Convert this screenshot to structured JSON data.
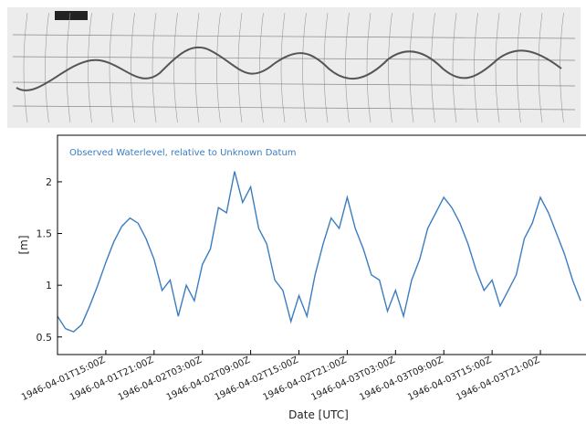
{
  "chart_data": {
    "type": "line",
    "annotation": "Observed Waterlevel, relative to Unknown Datum",
    "ylabel": "[m]",
    "xlabel": "Date [UTC]",
    "ylim": [
      0.33,
      2.45
    ],
    "yticks": [
      0.5,
      1.0,
      1.5,
      2.0
    ],
    "xlim": [
      "1946-04-01T09:00Z",
      "1946-04-04T02:40Z"
    ],
    "xticks": [
      "1946-04-01T15:00Z",
      "1946-04-01T21:00Z",
      "1946-04-02T03:00Z",
      "1946-04-02T09:00Z",
      "1946-04-02T15:00Z",
      "1946-04-02T21:00Z",
      "1946-04-03T03:00Z",
      "1946-04-03T09:00Z",
      "1946-04-03T15:00Z",
      "1946-04-03T21:00Z"
    ],
    "series": [
      {
        "color": "#3b7dc0",
        "x": [
          "1946-04-01T09:00Z",
          "1946-04-01T10:00Z",
          "1946-04-01T11:00Z",
          "1946-04-01T12:00Z",
          "1946-04-01T13:00Z",
          "1946-04-01T14:00Z",
          "1946-04-01T15:00Z",
          "1946-04-01T16:00Z",
          "1946-04-01T17:00Z",
          "1946-04-01T18:00Z",
          "1946-04-01T19:00Z",
          "1946-04-01T20:00Z",
          "1946-04-01T21:00Z",
          "1946-04-01T22:00Z",
          "1946-04-01T23:00Z",
          "1946-04-02T00:00Z",
          "1946-04-02T01:00Z",
          "1946-04-02T02:00Z",
          "1946-04-02T03:00Z",
          "1946-04-02T04:00Z",
          "1946-04-02T05:00Z",
          "1946-04-02T06:00Z",
          "1946-04-02T07:00Z",
          "1946-04-02T08:00Z",
          "1946-04-02T09:00Z",
          "1946-04-02T10:00Z",
          "1946-04-02T11:00Z",
          "1946-04-02T12:00Z",
          "1946-04-02T13:00Z",
          "1946-04-02T14:00Z",
          "1946-04-02T15:00Z",
          "1946-04-02T16:00Z",
          "1946-04-02T17:00Z",
          "1946-04-02T18:00Z",
          "1946-04-02T19:00Z",
          "1946-04-02T20:00Z",
          "1946-04-02T21:00Z",
          "1946-04-02T22:00Z",
          "1946-04-02T23:00Z",
          "1946-04-03T00:00Z",
          "1946-04-03T01:00Z",
          "1946-04-03T02:00Z",
          "1946-04-03T03:00Z",
          "1946-04-03T04:00Z",
          "1946-04-03T05:00Z",
          "1946-04-03T06:00Z",
          "1946-04-03T07:00Z",
          "1946-04-03T08:00Z",
          "1946-04-03T09:00Z",
          "1946-04-03T10:00Z",
          "1946-04-03T11:00Z",
          "1946-04-03T12:00Z",
          "1946-04-03T13:00Z",
          "1946-04-03T14:00Z",
          "1946-04-03T15:00Z",
          "1946-04-03T16:00Z",
          "1946-04-03T17:00Z",
          "1946-04-03T18:00Z",
          "1946-04-03T19:00Z",
          "1946-04-03T20:00Z",
          "1946-04-03T21:00Z",
          "1946-04-03T22:00Z",
          "1946-04-03T23:00Z",
          "1946-04-04T00:00Z",
          "1946-04-04T01:00Z",
          "1946-04-04T02:00Z"
        ],
        "values": [
          0.7,
          0.58,
          0.55,
          0.62,
          0.8,
          1.0,
          1.22,
          1.42,
          1.57,
          1.65,
          1.6,
          1.45,
          1.25,
          0.95,
          1.05,
          0.7,
          1.0,
          0.85,
          1.2,
          1.35,
          1.75,
          1.7,
          2.1,
          1.8,
          1.95,
          1.55,
          1.4,
          1.05,
          0.95,
          0.65,
          0.9,
          0.7,
          1.1,
          1.4,
          1.65,
          1.55,
          1.85,
          1.55,
          1.35,
          1.1,
          1.05,
          0.75,
          0.95,
          0.7,
          1.05,
          1.25,
          1.55,
          1.7,
          1.85,
          1.75,
          1.6,
          1.4,
          1.15,
          0.95,
          1.05,
          0.8,
          0.95,
          1.1,
          1.45,
          1.6,
          1.85,
          1.7,
          1.5,
          1.3,
          1.05,
          0.85
        ]
      }
    ]
  }
}
